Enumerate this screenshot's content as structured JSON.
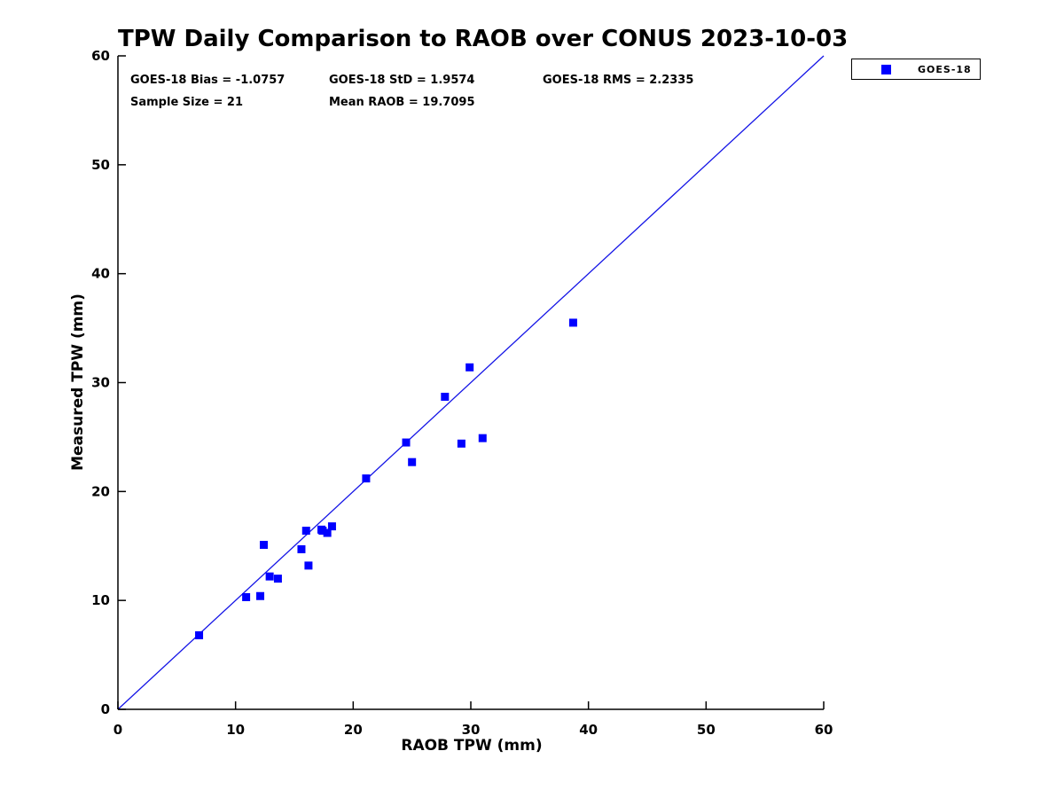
{
  "title": "TPW Daily Comparison to RAOB over CONUS 2023-10-03",
  "stats": {
    "bias": "GOES-18 Bias = -1.0757",
    "std": "GOES-18 StD = 1.9574",
    "rms": "GOES-18 RMS = 2.2335",
    "sample_size": "Sample Size = 21",
    "mean_raob": "Mean RAOB = 19.7095"
  },
  "legend": {
    "label": "GOES-18",
    "marker_color": "#0000ff"
  },
  "colors": {
    "marker": "#0000ff",
    "reference_line": "#1414e6",
    "axis": "#000000",
    "background": "#ffffff"
  },
  "chart_data": {
    "type": "scatter",
    "title": "TPW Daily Comparison to RAOB over CONUS 2023-10-03",
    "xlabel": "RAOB TPW (mm)",
    "ylabel": "Measured TPW (mm)",
    "xlim": [
      0,
      60
    ],
    "ylim": [
      0,
      60
    ],
    "x_ticks": [
      0,
      10,
      20,
      30,
      40,
      50,
      60
    ],
    "y_ticks": [
      0,
      10,
      20,
      30,
      40,
      50,
      60
    ],
    "grid": false,
    "legend_position": "outside-top-right",
    "reference_line": {
      "from": [
        0,
        0
      ],
      "to": [
        60,
        60
      ]
    },
    "series": [
      {
        "name": "GOES-18",
        "marker": "filled-square",
        "points": [
          [
            6.9,
            6.8
          ],
          [
            10.9,
            10.3
          ],
          [
            12.1,
            10.4
          ],
          [
            12.4,
            15.1
          ],
          [
            12.9,
            12.2
          ],
          [
            13.6,
            12.0
          ],
          [
            15.6,
            14.7
          ],
          [
            16.0,
            16.4
          ],
          [
            16.2,
            13.2
          ],
          [
            17.3,
            16.5
          ],
          [
            17.4,
            16.4
          ],
          [
            17.8,
            16.2
          ],
          [
            18.2,
            16.8
          ],
          [
            21.1,
            21.2
          ],
          [
            24.5,
            24.5
          ],
          [
            25.0,
            22.7
          ],
          [
            27.8,
            28.7
          ],
          [
            29.2,
            24.4
          ],
          [
            29.9,
            31.4
          ],
          [
            31.0,
            24.9
          ],
          [
            38.7,
            35.5
          ]
        ]
      }
    ]
  }
}
